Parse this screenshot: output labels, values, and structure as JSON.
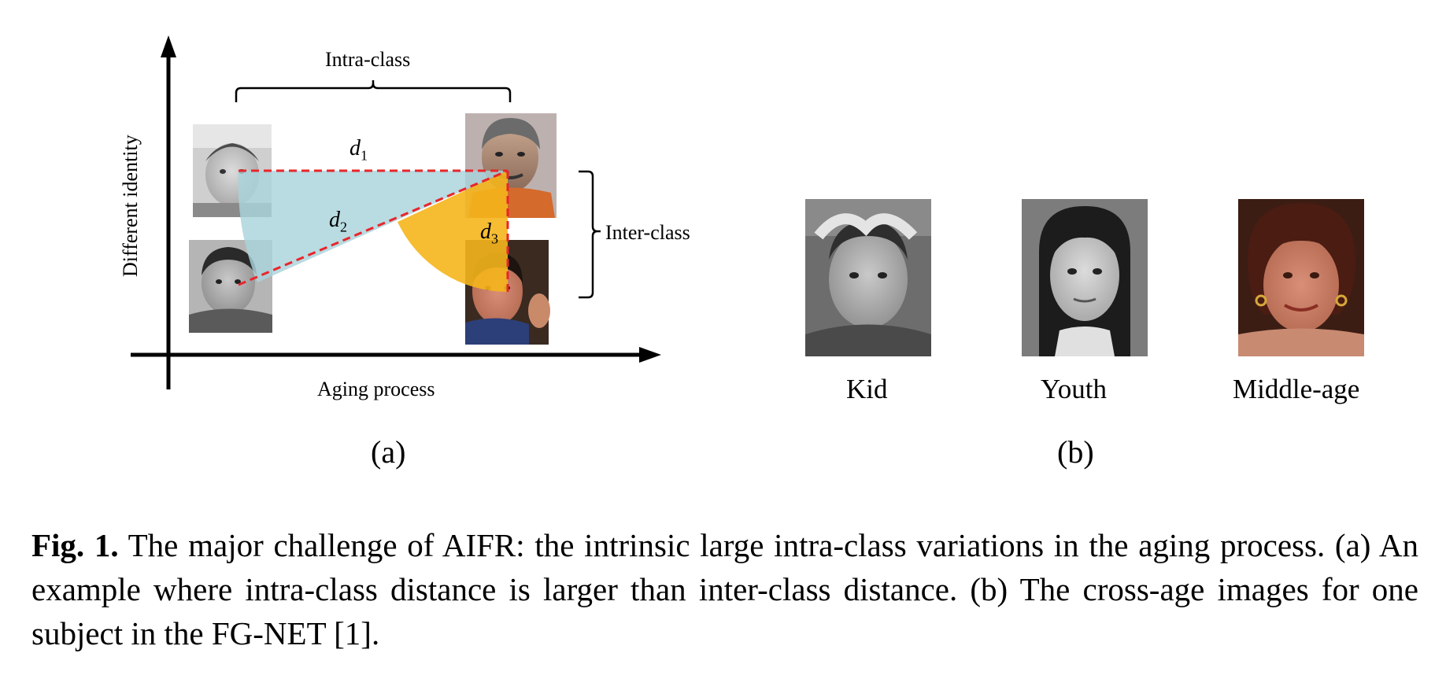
{
  "panel_a": {
    "y_axis_label": "Different identity",
    "x_axis_label": "Aging process",
    "intra_class_label": "Intra-class",
    "inter_class_label": "Inter-class",
    "distances": [
      {
        "symbol": "d",
        "subscript": "1"
      },
      {
        "symbol": "d",
        "subscript": "2"
      },
      {
        "symbol": "d",
        "subscript": "3"
      }
    ],
    "sub_label": "(a)",
    "photos": [
      "young-subject-a-face",
      "young-subject-b-face",
      "old-subject-a-face",
      "old-subject-b-face"
    ],
    "colors": {
      "wedge_1": "#a9d3dc",
      "wedge_2": "#f5b51c",
      "dashed_line": "#e8262a",
      "axis": "#000000"
    }
  },
  "panel_b": {
    "images": [
      {
        "label": "Kid"
      },
      {
        "label": "Youth"
      },
      {
        "label": "Middle-age"
      }
    ],
    "sub_label": "(b)"
  },
  "caption": {
    "fig_label": "Fig. 1.",
    "text": "The major challenge of AIFR: the intrinsic large intra-class variations in the aging process. (a) An example where intra-class distance is larger than inter-class distance. (b) The cross-age images for one subject in the FG-NET [1]."
  }
}
